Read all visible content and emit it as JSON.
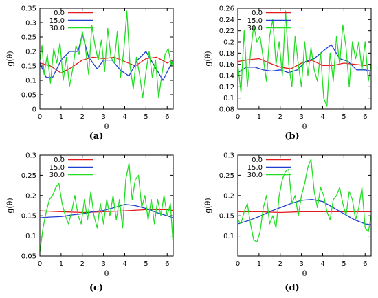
{
  "colors": {
    "series_0": "#e41a1c",
    "series_15": "#1f3fd0",
    "series_30": "#22dd22",
    "axis": "#000000"
  },
  "chart_data": [
    {
      "type": "line",
      "panel": "a",
      "caption": "(a)",
      "xlabel": "θ",
      "ylabel": "g(θ)",
      "xlim": [
        0,
        6.2832
      ],
      "ylim": [
        0,
        0.35
      ],
      "xticks": [
        0,
        1,
        2,
        3,
        4,
        5,
        6
      ],
      "xtick_labels": [
        "0",
        "1",
        "2",
        "3",
        "4",
        "5",
        "6"
      ],
      "yticks": [
        0,
        0.05,
        0.1,
        0.15,
        0.2,
        0.25,
        0.3,
        0.35
      ],
      "ytick_labels": [
        "0",
        "0.05",
        "0.1",
        "0.15",
        "0.2",
        "0.25",
        "0.3",
        "0.35"
      ],
      "legend": "top-left",
      "grid": false,
      "series": [
        {
          "name": "0.0",
          "color_key": "series_0",
          "x": [
            0,
            0.5,
            1,
            1.5,
            2,
            2.5,
            3,
            3.5,
            4,
            4.5,
            5,
            5.5,
            6,
            6.28
          ],
          "y": [
            0.16,
            0.15,
            0.125,
            0.145,
            0.17,
            0.18,
            0.175,
            0.18,
            0.165,
            0.15,
            0.175,
            0.18,
            0.16,
            0.17
          ]
        },
        {
          "name": "15.0",
          "color_key": "series_15",
          "x": [
            0,
            0.3,
            0.6,
            1,
            1.4,
            1.8,
            2,
            2.3,
            2.7,
            3,
            3.4,
            3.8,
            4.2,
            4.6,
            5,
            5.4,
            5.8,
            6.28
          ],
          "y": [
            0.16,
            0.11,
            0.11,
            0.17,
            0.2,
            0.2,
            0.26,
            0.18,
            0.14,
            0.17,
            0.17,
            0.135,
            0.115,
            0.17,
            0.2,
            0.15,
            0.1,
            0.17
          ]
        },
        {
          "name": "30.0",
          "color_key": "series_30",
          "x": [
            0,
            0.1,
            0.2,
            0.35,
            0.5,
            0.65,
            0.8,
            0.95,
            1.1,
            1.25,
            1.4,
            1.55,
            1.7,
            1.85,
            2.0,
            2.15,
            2.3,
            2.45,
            2.6,
            2.75,
            2.9,
            3.05,
            3.2,
            3.35,
            3.5,
            3.65,
            3.8,
            3.95,
            4.1,
            4.25,
            4.4,
            4.55,
            4.7,
            4.85,
            5.0,
            5.15,
            5.3,
            5.45,
            5.6,
            5.75,
            5.9,
            6.05,
            6.2,
            6.28
          ],
          "y": [
            0.17,
            0.22,
            0.12,
            0.19,
            0.09,
            0.21,
            0.16,
            0.23,
            0.1,
            0.18,
            0.08,
            0.14,
            0.22,
            0.19,
            0.27,
            0.21,
            0.12,
            0.29,
            0.22,
            0.17,
            0.24,
            0.13,
            0.28,
            0.18,
            0.16,
            0.27,
            0.11,
            0.2,
            0.34,
            0.15,
            0.07,
            0.18,
            0.12,
            0.04,
            0.13,
            0.2,
            0.11,
            0.17,
            0.04,
            0.12,
            0.19,
            0.21,
            0.15,
            0.17
          ]
        }
      ]
    },
    {
      "type": "line",
      "panel": "b",
      "caption": "(b)",
      "xlabel": "θ",
      "ylabel": "g(θ)",
      "xlim": [
        0,
        6.2832
      ],
      "ylim": [
        0.08,
        0.26
      ],
      "xticks": [
        0,
        1,
        2,
        3,
        4,
        5,
        6
      ],
      "xtick_labels": [
        "0",
        "1",
        "2",
        "3",
        "4",
        "5",
        "6"
      ],
      "yticks": [
        0.08,
        0.1,
        0.12,
        0.14,
        0.16,
        0.18,
        0.2,
        0.22,
        0.24,
        0.26
      ],
      "ytick_labels": [
        "0.08",
        "0.1",
        "0.12",
        "0.14",
        "0.16",
        "0.18",
        "0.2",
        "0.22",
        "0.24",
        "0.26"
      ],
      "legend": "top-left",
      "grid": false,
      "series": [
        {
          "name": "0.0",
          "color_key": "series_0",
          "x": [
            0,
            0.5,
            1,
            1.5,
            2,
            2.5,
            3,
            3.5,
            4,
            4.5,
            5,
            5.5,
            6,
            6.28
          ],
          "y": [
            0.165,
            0.168,
            0.17,
            0.162,
            0.155,
            0.152,
            0.162,
            0.167,
            0.158,
            0.158,
            0.162,
            0.16,
            0.158,
            0.16
          ]
        },
        {
          "name": "15.0",
          "color_key": "series_15",
          "x": [
            0,
            0.4,
            0.8,
            1.2,
            1.6,
            2.0,
            2.4,
            2.8,
            3.2,
            3.6,
            4.0,
            4.4,
            4.8,
            5.2,
            5.6,
            6.0,
            6.28
          ],
          "y": [
            0.145,
            0.155,
            0.155,
            0.15,
            0.148,
            0.15,
            0.145,
            0.15,
            0.165,
            0.17,
            0.183,
            0.195,
            0.17,
            0.165,
            0.15,
            0.15,
            0.148
          ]
        },
        {
          "name": "30.0",
          "color_key": "series_30",
          "x": [
            0,
            0.15,
            0.3,
            0.45,
            0.6,
            0.75,
            0.9,
            1.05,
            1.2,
            1.35,
            1.5,
            1.65,
            1.8,
            1.95,
            2.1,
            2.25,
            2.4,
            2.55,
            2.7,
            2.85,
            3.0,
            3.15,
            3.3,
            3.45,
            3.6,
            3.75,
            3.9,
            4.05,
            4.2,
            4.35,
            4.5,
            4.65,
            4.8,
            4.95,
            5.1,
            5.25,
            5.4,
            5.55,
            5.7,
            5.85,
            6.0,
            6.15,
            6.28
          ],
          "y": [
            0.16,
            0.11,
            0.22,
            0.12,
            0.18,
            0.23,
            0.2,
            0.21,
            0.17,
            0.13,
            0.21,
            0.24,
            0.16,
            0.2,
            0.14,
            0.255,
            0.16,
            0.12,
            0.21,
            0.16,
            0.12,
            0.2,
            0.14,
            0.19,
            0.15,
            0.13,
            0.18,
            0.1,
            0.085,
            0.18,
            0.13,
            0.21,
            0.16,
            0.23,
            0.19,
            0.12,
            0.2,
            0.17,
            0.2,
            0.15,
            0.2,
            0.13,
            0.16
          ]
        }
      ]
    },
    {
      "type": "line",
      "panel": "c",
      "caption": "(c)",
      "xlabel": "θ",
      "ylabel": "g(θ)",
      "xlim": [
        0,
        6.2832
      ],
      "ylim": [
        0.05,
        0.3
      ],
      "xticks": [
        0,
        1,
        2,
        3,
        4,
        5,
        6
      ],
      "xtick_labels": [
        "0",
        "1",
        "2",
        "3",
        "4",
        "5",
        "6"
      ],
      "yticks": [
        0.05,
        0.1,
        0.15,
        0.2,
        0.25,
        0.3
      ],
      "ytick_labels": [
        "0.05",
        "0.1",
        "0.15",
        "0.2",
        "0.25",
        "0.3"
      ],
      "legend": "top-left",
      "grid": false,
      "series": [
        {
          "name": "0.0",
          "color_key": "series_0",
          "x": [
            0,
            1,
            2,
            3,
            4,
            5,
            6,
            6.28
          ],
          "y": [
            0.162,
            0.16,
            0.158,
            0.16,
            0.162,
            0.165,
            0.165,
            0.163
          ]
        },
        {
          "name": "15.0",
          "color_key": "series_15",
          "x": [
            0,
            0.5,
            1,
            1.5,
            2,
            2.5,
            3,
            3.5,
            4,
            4.5,
            5,
            5.5,
            6,
            6.28
          ],
          "y": [
            0.145,
            0.147,
            0.148,
            0.152,
            0.155,
            0.16,
            0.163,
            0.17,
            0.178,
            0.175,
            0.168,
            0.158,
            0.15,
            0.145
          ]
        },
        {
          "name": "30.0",
          "color_key": "series_30",
          "x": [
            0,
            0.15,
            0.3,
            0.45,
            0.6,
            0.75,
            0.9,
            1.05,
            1.2,
            1.35,
            1.5,
            1.65,
            1.8,
            1.95,
            2.1,
            2.25,
            2.4,
            2.55,
            2.7,
            2.85,
            3.0,
            3.15,
            3.3,
            3.45,
            3.6,
            3.75,
            3.9,
            4.05,
            4.2,
            4.35,
            4.5,
            4.65,
            4.8,
            4.95,
            5.1,
            5.25,
            5.4,
            5.55,
            5.7,
            5.85,
            6.0,
            6.15,
            6.28
          ],
          "y": [
            0.06,
            0.12,
            0.16,
            0.19,
            0.2,
            0.22,
            0.23,
            0.18,
            0.15,
            0.13,
            0.16,
            0.2,
            0.15,
            0.13,
            0.19,
            0.14,
            0.21,
            0.15,
            0.12,
            0.18,
            0.13,
            0.19,
            0.15,
            0.2,
            0.14,
            0.19,
            0.12,
            0.24,
            0.28,
            0.19,
            0.24,
            0.25,
            0.17,
            0.2,
            0.14,
            0.19,
            0.13,
            0.19,
            0.15,
            0.2,
            0.15,
            0.18,
            0.08
          ]
        }
      ]
    },
    {
      "type": "line",
      "panel": "d",
      "caption": "(d)",
      "xlabel": "θ",
      "ylabel": "g(θ)",
      "xlim": [
        0,
        6.2832
      ],
      "ylim": [
        0.05,
        0.3
      ],
      "xticks": [
        0,
        1,
        2,
        3,
        4,
        5,
        6
      ],
      "xtick_labels": [
        "0",
        "1",
        "2",
        "3",
        "4",
        "5",
        "6"
      ],
      "yticks": [
        0.1,
        0.15,
        0.2,
        0.25,
        0.3
      ],
      "ytick_labels": [
        "0.1",
        "0.15",
        "0.2",
        "0.25",
        "0.3"
      ],
      "legend": "top-left",
      "grid": false,
      "series": [
        {
          "name": "0.0",
          "color_key": "series_0",
          "x": [
            0,
            1,
            2,
            3,
            4,
            5,
            6,
            6.28
          ],
          "y": [
            0.16,
            0.16,
            0.158,
            0.16,
            0.16,
            0.16,
            0.16,
            0.16
          ]
        },
        {
          "name": "15.0",
          "color_key": "series_15",
          "x": [
            0,
            0.5,
            1,
            1.5,
            2,
            2.5,
            3,
            3.5,
            4,
            4.5,
            5,
            5.5,
            6,
            6.28
          ],
          "y": [
            0.13,
            0.138,
            0.148,
            0.16,
            0.17,
            0.18,
            0.188,
            0.19,
            0.185,
            0.17,
            0.155,
            0.14,
            0.13,
            0.128
          ]
        },
        {
          "name": "30.0",
          "color_key": "series_30",
          "x": [
            0,
            0.15,
            0.3,
            0.45,
            0.6,
            0.75,
            0.9,
            1.05,
            1.2,
            1.35,
            1.5,
            1.65,
            1.8,
            1.95,
            2.1,
            2.25,
            2.4,
            2.55,
            2.7,
            2.85,
            3.0,
            3.15,
            3.3,
            3.45,
            3.6,
            3.75,
            3.9,
            4.05,
            4.2,
            4.35,
            4.5,
            4.65,
            4.8,
            4.95,
            5.1,
            5.25,
            5.4,
            5.55,
            5.7,
            5.85,
            6.0,
            6.15,
            6.28
          ],
          "y": [
            0.14,
            0.13,
            0.16,
            0.18,
            0.13,
            0.09,
            0.085,
            0.11,
            0.17,
            0.2,
            0.13,
            0.15,
            0.12,
            0.2,
            0.24,
            0.26,
            0.265,
            0.18,
            0.2,
            0.15,
            0.2,
            0.23,
            0.27,
            0.29,
            0.21,
            0.17,
            0.22,
            0.2,
            0.16,
            0.14,
            0.19,
            0.2,
            0.22,
            0.18,
            0.15,
            0.21,
            0.19,
            0.14,
            0.17,
            0.22,
            0.12,
            0.11,
            0.15
          ]
        }
      ]
    }
  ]
}
